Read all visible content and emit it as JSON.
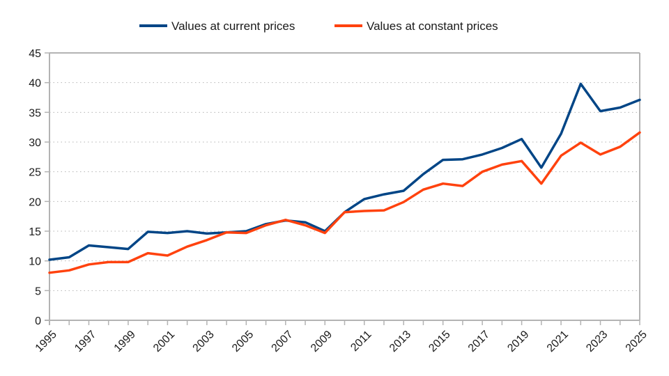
{
  "chart_data": {
    "type": "line",
    "title": "",
    "xlabel": "",
    "ylabel": "",
    "ylim": [
      0,
      45
    ],
    "y_ticks": [
      0,
      5,
      10,
      15,
      20,
      25,
      30,
      35,
      40,
      45
    ],
    "x": [
      1995,
      1996,
      1997,
      1998,
      1999,
      2000,
      2001,
      2002,
      2003,
      2004,
      2005,
      2006,
      2007,
      2008,
      2009,
      2010,
      2011,
      2012,
      2013,
      2014,
      2015,
      2016,
      2017,
      2018,
      2019,
      2020,
      2021,
      2022,
      2023,
      2024,
      2025
    ],
    "x_tick_labels": [
      "1995",
      "1997",
      "1999",
      "2001",
      "2003",
      "2005",
      "2007",
      "2009",
      "2011",
      "2013",
      "2015",
      "2017",
      "2019",
      "2021",
      "2023",
      "2025"
    ],
    "grid": true,
    "legend_position": "top-center",
    "series": [
      {
        "name": "Values at current prices",
        "color": "#004586",
        "values": [
          10.2,
          10.6,
          12.6,
          12.3,
          12.0,
          14.9,
          14.7,
          15.0,
          14.6,
          14.8,
          15.0,
          16.2,
          16.8,
          16.5,
          15.0,
          18.2,
          20.4,
          21.2,
          21.8,
          24.6,
          27.0,
          27.1,
          27.9,
          29.0,
          30.5,
          25.7,
          31.4,
          39.8,
          35.2,
          35.8,
          37.1
        ]
      },
      {
        "name": "Values at constant prices",
        "color": "#ff420e",
        "values": [
          8.0,
          8.4,
          9.4,
          9.8,
          9.8,
          11.3,
          10.9,
          12.4,
          13.5,
          14.8,
          14.7,
          16.0,
          16.9,
          16.0,
          14.7,
          18.2,
          18.4,
          18.5,
          19.9,
          22.0,
          23.0,
          22.6,
          25.0,
          26.2,
          26.8,
          23.0,
          27.7,
          29.9,
          27.9,
          29.2,
          31.6
        ]
      }
    ]
  }
}
